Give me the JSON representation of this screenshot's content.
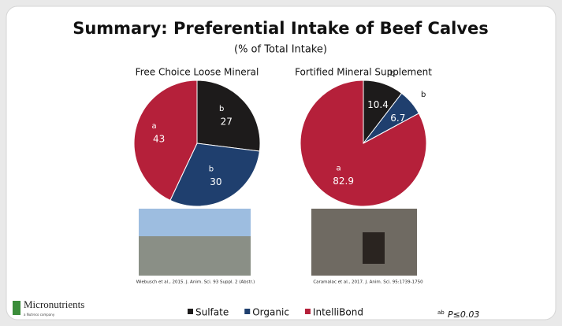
{
  "title": "Summary: Preferential Intake of Beef Calves",
  "subtitle": "(% of Total Intake)",
  "categories": [
    "Sulfate",
    "Organic",
    "IntelliBond"
  ],
  "colors": [
    "#1d1b1b",
    "#1f3f6e",
    "#b5203a"
  ],
  "chart_data": [
    {
      "type": "pie",
      "title": "Free Choice Loose Mineral",
      "values": [
        27,
        30,
        43
      ],
      "letters": [
        "b",
        "b",
        "a"
      ],
      "source": "Wiebusch et al., 2015. J. Anim. Sci. 93 Suppl. 2 (Abstr.)"
    },
    {
      "type": "pie",
      "title": "Fortified Mineral Supplement",
      "values": [
        10.4,
        6.7,
        82.9
      ],
      "letters": [
        "b",
        "b",
        "a"
      ],
      "source": "Caramalac et al., 2017. J. Anim. Sci. 95:1739-1750"
    }
  ],
  "logo": {
    "name": "Micronutrients",
    "tagline": "a Nutreco company"
  },
  "footnote": {
    "letters": "ab",
    "text": "P≤0.03"
  }
}
